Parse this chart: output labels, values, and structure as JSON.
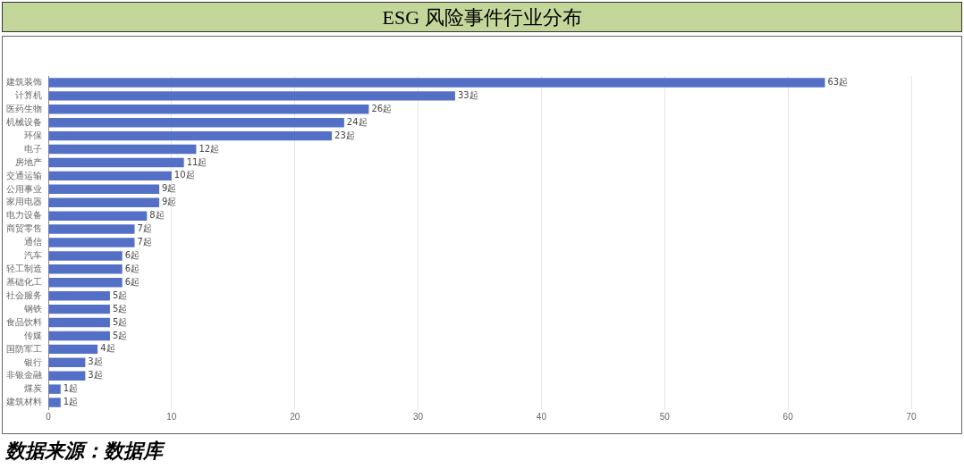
{
  "chart_data": {
    "type": "bar",
    "orientation": "horizontal",
    "title": "ESG 风险事件行业分布",
    "categories": [
      "建筑装饰",
      "计算机",
      "医药生物",
      "机械设备",
      "环保",
      "电子",
      "房地产",
      "交通运输",
      "公用事业",
      "家用电器",
      "电力设备",
      "商贸零售",
      "通信",
      "汽车",
      "轻工制造",
      "基础化工",
      "社会服务",
      "钢铁",
      "食品饮料",
      "传媒",
      "国防军工",
      "银行",
      "非银金融",
      "煤炭",
      "建筑材料"
    ],
    "values": [
      63,
      33,
      26,
      24,
      23,
      12,
      11,
      10,
      9,
      9,
      8,
      7,
      7,
      6,
      6,
      6,
      5,
      5,
      5,
      5,
      4,
      3,
      3,
      1,
      1
    ],
    "value_labels": [
      "63起",
      "33起",
      "26起",
      "24起",
      "23起",
      "12起",
      "11起",
      "10起",
      "9起",
      "9起",
      "8起",
      "7起",
      "7起",
      "6起",
      "6起",
      "6起",
      "5起",
      "5起",
      "5起",
      "5起",
      "4起",
      "3起",
      "3起",
      "1起",
      "1起"
    ],
    "color": "#5470c6",
    "xlim": [
      0,
      70
    ],
    "xticks": [
      0,
      10,
      20,
      30,
      40,
      50,
      60,
      70
    ],
    "grid": "x",
    "legend": false,
    "annotations": [
      "数据来源：数据库"
    ]
  }
}
